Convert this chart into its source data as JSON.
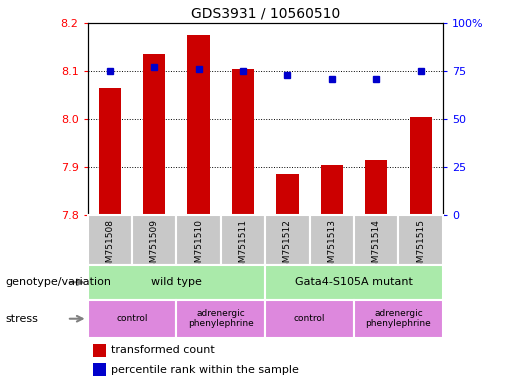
{
  "title": "GDS3931 / 10560510",
  "samples": [
    "GSM751508",
    "GSM751509",
    "GSM751510",
    "GSM751511",
    "GSM751512",
    "GSM751513",
    "GSM751514",
    "GSM751515"
  ],
  "transformed_count": [
    8.065,
    8.135,
    8.175,
    8.105,
    7.885,
    7.905,
    7.915,
    8.005
  ],
  "percentile_rank": [
    75,
    77,
    76,
    75,
    73,
    71,
    71,
    75
  ],
  "ylim_left": [
    7.8,
    8.2
  ],
  "ylim_right": [
    0,
    100
  ],
  "yticks_left": [
    7.8,
    7.9,
    8.0,
    8.1,
    8.2
  ],
  "yticks_right": [
    0,
    25,
    50,
    75,
    100
  ],
  "bar_color": "#cc0000",
  "dot_color": "#0000cc",
  "bar_width": 0.5,
  "sample_box_color": "#c8c8c8",
  "genotype_groups": [
    {
      "label": "wild type",
      "start": 0,
      "end": 4,
      "color": "#aaeaaa"
    },
    {
      "label": "Gata4-S105A mutant",
      "start": 4,
      "end": 8,
      "color": "#aaeaaa"
    }
  ],
  "stress_groups": [
    {
      "label": "control",
      "start": 0,
      "end": 2,
      "color": "#dd88dd"
    },
    {
      "label": "adrenergic\nphenylephrine",
      "start": 2,
      "end": 4,
      "color": "#dd88dd"
    },
    {
      "label": "control",
      "start": 4,
      "end": 6,
      "color": "#dd88dd"
    },
    {
      "label": "adrenergic\nphenylephrine",
      "start": 6,
      "end": 8,
      "color": "#dd88dd"
    }
  ],
  "legend_items": [
    {
      "label": "transformed count",
      "color": "#cc0000"
    },
    {
      "label": "percentile rank within the sample",
      "color": "#0000cc"
    }
  ],
  "genotype_label": "genotype/variation",
  "stress_label": "stress",
  "title_fontsize": 10,
  "tick_fontsize": 8,
  "axis_label_fontsize": 8,
  "sample_fontsize": 6.5,
  "group_fontsize": 8,
  "legend_fontsize": 8
}
